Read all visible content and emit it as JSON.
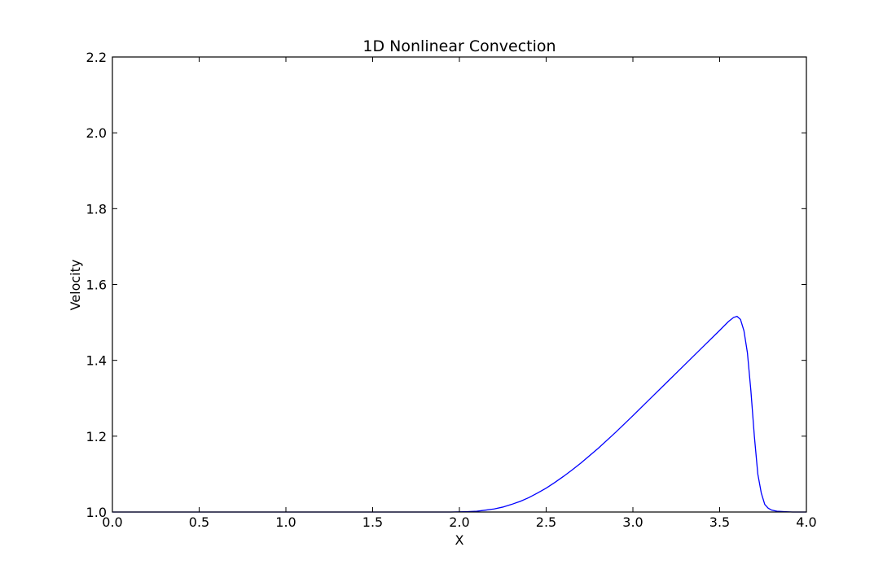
{
  "chart_data": {
    "type": "line",
    "title": "1D Nonlinear Convection",
    "xlabel": "X",
    "ylabel": "Velocity",
    "xlim": [
      0.0,
      4.0
    ],
    "ylim": [
      1.0,
      2.2
    ],
    "xticks": [
      "0.0",
      "0.5",
      "1.0",
      "1.5",
      "2.0",
      "2.5",
      "3.0",
      "3.5",
      "4.0"
    ],
    "yticks": [
      "1.0",
      "1.2",
      "1.4",
      "1.6",
      "1.8",
      "2.0",
      "2.2"
    ],
    "grid": false,
    "series": [
      {
        "color": "#0000ff",
        "x": [
          0.0,
          0.5,
          1.0,
          1.5,
          1.8,
          1.95,
          2.05,
          2.1,
          2.15,
          2.2,
          2.25,
          2.3,
          2.35,
          2.4,
          2.45,
          2.5,
          2.55,
          2.6,
          2.65,
          2.7,
          2.8,
          2.9,
          3.0,
          3.1,
          3.2,
          3.3,
          3.4,
          3.5,
          3.55,
          3.58,
          3.6,
          3.62,
          3.64,
          3.66,
          3.68,
          3.7,
          3.72,
          3.74,
          3.76,
          3.78,
          3.8,
          3.83,
          3.87,
          3.92,
          4.0
        ],
        "y": [
          1.0,
          1.0,
          1.0,
          1.0,
          1.0,
          1.0,
          1.001,
          1.002,
          1.005,
          1.008,
          1.013,
          1.02,
          1.028,
          1.038,
          1.05,
          1.063,
          1.078,
          1.094,
          1.111,
          1.129,
          1.168,
          1.21,
          1.254,
          1.299,
          1.344,
          1.389,
          1.434,
          1.479,
          1.502,
          1.513,
          1.516,
          1.508,
          1.478,
          1.42,
          1.32,
          1.2,
          1.1,
          1.05,
          1.02,
          1.01,
          1.005,
          1.002,
          1.001,
          1.0,
          1.0
        ]
      }
    ]
  }
}
